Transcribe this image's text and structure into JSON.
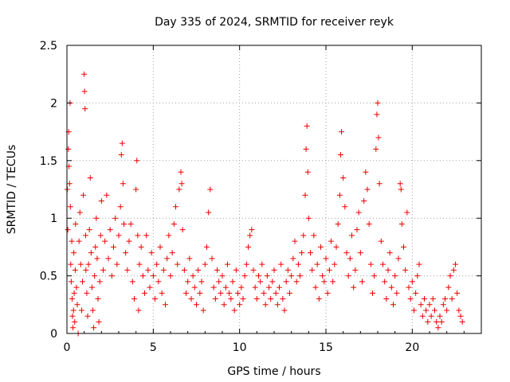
{
  "chart_data": {
    "type": "scatter",
    "title": "Day 335 of 2024, SRMTID for receiver reyk",
    "xlabel": "GPS time / hours",
    "ylabel": "SRMTID / TECUs",
    "xlim": [
      0,
      24
    ],
    "ylim": [
      0,
      2.5
    ],
    "xticks": [
      0,
      5,
      10,
      15,
      20
    ],
    "yticks": [
      0,
      0.5,
      1,
      1.5,
      2,
      2.5
    ],
    "xtick_labels": [
      "0",
      "5",
      "10",
      "15",
      "20"
    ],
    "ytick_labels": [
      "0",
      "0.5",
      "1",
      "1.5",
      "2",
      "2.5"
    ],
    "grid": true,
    "marker": "+",
    "color": "#ee0000",
    "series": [
      {
        "name": "SRMTID",
        "points": [
          [
            0.02,
            1.25
          ],
          [
            0.05,
            0.9
          ],
          [
            0.08,
            1.6
          ],
          [
            0.1,
            1.75
          ],
          [
            0.12,
            1.45
          ],
          [
            0.15,
            1.3
          ],
          [
            0.18,
            2.0
          ],
          [
            0.2,
            1.1
          ],
          [
            0.22,
            0.6
          ],
          [
            0.25,
            0.45
          ],
          [
            0.28,
            0.8
          ],
          [
            0.3,
            0.3
          ],
          [
            0.32,
            0.15
          ],
          [
            0.35,
            0.05
          ],
          [
            0.38,
            0.2
          ],
          [
            0.4,
            0.7
          ],
          [
            0.42,
            0.35
          ],
          [
            0.45,
            0.1
          ],
          [
            0.48,
            0.55
          ],
          [
            0.5,
            0.95
          ],
          [
            0.55,
            0.4
          ],
          [
            0.6,
            0.25
          ],
          [
            0.65,
            0.0
          ],
          [
            0.7,
            0.8
          ],
          [
            0.75,
            1.05
          ],
          [
            0.8,
            0.6
          ],
          [
            0.85,
            0.2
          ],
          [
            0.9,
            0.45
          ],
          [
            0.95,
            1.2
          ],
          [
            1.0,
            2.25
          ],
          [
            1.02,
            2.1
          ],
          [
            1.05,
            1.95
          ],
          [
            1.08,
            0.85
          ],
          [
            1.1,
            0.55
          ],
          [
            1.15,
            0.35
          ],
          [
            1.2,
            0.15
          ],
          [
            1.25,
            0.6
          ],
          [
            1.3,
            0.9
          ],
          [
            1.35,
            1.35
          ],
          [
            1.4,
            0.7
          ],
          [
            1.45,
            0.4
          ],
          [
            1.5,
            0.2
          ],
          [
            1.55,
            0.05
          ],
          [
            1.6,
            0.5
          ],
          [
            1.65,
            0.75
          ],
          [
            1.7,
            1.0
          ],
          [
            1.75,
            0.65
          ],
          [
            1.8,
            0.3
          ],
          [
            1.85,
            0.1
          ],
          [
            1.9,
            0.45
          ],
          [
            1.95,
            0.85
          ],
          [
            2.0,
            1.15
          ],
          [
            2.1,
            0.55
          ],
          [
            2.2,
            0.8
          ],
          [
            2.3,
            1.2
          ],
          [
            2.4,
            0.65
          ],
          [
            2.5,
            0.9
          ],
          [
            2.6,
            0.5
          ],
          [
            2.7,
            0.75
          ],
          [
            2.8,
            1.0
          ],
          [
            2.9,
            0.6
          ],
          [
            3.0,
            0.85
          ],
          [
            3.1,
            1.1
          ],
          [
            3.15,
            1.55
          ],
          [
            3.2,
            1.65
          ],
          [
            3.25,
            1.3
          ],
          [
            3.3,
            0.95
          ],
          [
            3.4,
            0.7
          ],
          [
            3.5,
            0.55
          ],
          [
            3.6,
            0.8
          ],
          [
            3.7,
            0.95
          ],
          [
            3.8,
            0.45
          ],
          [
            3.9,
            0.3
          ],
          [
            4.0,
            1.25
          ],
          [
            4.05,
            1.5
          ],
          [
            4.1,
            0.85
          ],
          [
            4.15,
            0.2
          ],
          [
            4.2,
            0.6
          ],
          [
            4.3,
            0.75
          ],
          [
            4.4,
            0.5
          ],
          [
            4.5,
            0.35
          ],
          [
            4.6,
            0.85
          ],
          [
            4.7,
            0.55
          ],
          [
            4.8,
            0.4
          ],
          [
            4.9,
            0.7
          ],
          [
            5.0,
            0.5
          ],
          [
            5.1,
            0.3
          ],
          [
            5.2,
            0.6
          ],
          [
            5.3,
            0.45
          ],
          [
            5.4,
            0.75
          ],
          [
            5.5,
            0.35
          ],
          [
            5.6,
            0.55
          ],
          [
            5.7,
            0.25
          ],
          [
            5.8,
            0.65
          ],
          [
            5.9,
            0.85
          ],
          [
            6.0,
            0.5
          ],
          [
            6.1,
            0.7
          ],
          [
            6.2,
            0.95
          ],
          [
            6.3,
            1.1
          ],
          [
            6.4,
            0.6
          ],
          [
            6.5,
            1.25
          ],
          [
            6.6,
            1.4
          ],
          [
            6.65,
            1.3
          ],
          [
            6.7,
            0.9
          ],
          [
            6.8,
            0.55
          ],
          [
            6.9,
            0.35
          ],
          [
            7.0,
            0.45
          ],
          [
            7.1,
            0.65
          ],
          [
            7.2,
            0.3
          ],
          [
            7.3,
            0.5
          ],
          [
            7.4,
            0.4
          ],
          [
            7.5,
            0.25
          ],
          [
            7.6,
            0.55
          ],
          [
            7.7,
            0.35
          ],
          [
            7.8,
            0.45
          ],
          [
            7.9,
            0.2
          ],
          [
            8.0,
            0.6
          ],
          [
            8.1,
            0.75
          ],
          [
            8.2,
            1.05
          ],
          [
            8.3,
            1.25
          ],
          [
            8.4,
            0.65
          ],
          [
            8.5,
            0.4
          ],
          [
            8.6,
            0.3
          ],
          [
            8.7,
            0.55
          ],
          [
            8.8,
            0.45
          ],
          [
            8.9,
            0.35
          ],
          [
            9.0,
            0.5
          ],
          [
            9.1,
            0.25
          ],
          [
            9.2,
            0.4
          ],
          [
            9.3,
            0.6
          ],
          [
            9.4,
            0.35
          ],
          [
            9.5,
            0.3
          ],
          [
            9.6,
            0.45
          ],
          [
            9.7,
            0.2
          ],
          [
            9.8,
            0.55
          ],
          [
            9.9,
            0.35
          ],
          [
            10.0,
            0.25
          ],
          [
            10.1,
            0.4
          ],
          [
            10.2,
            0.3
          ],
          [
            10.3,
            0.5
          ],
          [
            10.4,
            0.6
          ],
          [
            10.5,
            0.75
          ],
          [
            10.6,
            0.85
          ],
          [
            10.7,
            0.9
          ],
          [
            10.8,
            0.55
          ],
          [
            10.9,
            0.4
          ],
          [
            11.0,
            0.3
          ],
          [
            11.1,
            0.5
          ],
          [
            11.2,
            0.45
          ],
          [
            11.3,
            0.6
          ],
          [
            11.4,
            0.35
          ],
          [
            11.5,
            0.25
          ],
          [
            11.6,
            0.5
          ],
          [
            11.7,
            0.4
          ],
          [
            11.8,
            0.3
          ],
          [
            11.9,
            0.45
          ],
          [
            12.0,
            0.55
          ],
          [
            12.1,
            0.35
          ],
          [
            12.2,
            0.25
          ],
          [
            12.3,
            0.4
          ],
          [
            12.4,
            0.6
          ],
          [
            12.5,
            0.3
          ],
          [
            12.6,
            0.2
          ],
          [
            12.7,
            0.45
          ],
          [
            12.8,
            0.55
          ],
          [
            12.9,
            0.35
          ],
          [
            13.0,
            0.5
          ],
          [
            13.1,
            0.65
          ],
          [
            13.2,
            0.8
          ],
          [
            13.3,
            0.45
          ],
          [
            13.4,
            0.6
          ],
          [
            13.5,
            0.5
          ],
          [
            13.6,
            0.7
          ],
          [
            13.7,
            0.85
          ],
          [
            13.8,
            1.2
          ],
          [
            13.85,
            1.6
          ],
          [
            13.9,
            1.8
          ],
          [
            13.95,
            1.4
          ],
          [
            14.0,
            1.0
          ],
          [
            14.1,
            0.7
          ],
          [
            14.2,
            0.55
          ],
          [
            14.3,
            0.85
          ],
          [
            14.4,
            0.4
          ],
          [
            14.5,
            0.6
          ],
          [
            14.6,
            0.3
          ],
          [
            14.7,
            0.75
          ],
          [
            14.8,
            0.5
          ],
          [
            14.9,
            0.45
          ],
          [
            15.0,
            0.65
          ],
          [
            15.1,
            0.35
          ],
          [
            15.2,
            0.55
          ],
          [
            15.3,
            0.8
          ],
          [
            15.4,
            0.45
          ],
          [
            15.5,
            0.6
          ],
          [
            15.6,
            0.75
          ],
          [
            15.7,
            0.95
          ],
          [
            15.8,
            1.2
          ],
          [
            15.85,
            1.55
          ],
          [
            15.9,
            1.75
          ],
          [
            16.0,
            1.35
          ],
          [
            16.1,
            1.1
          ],
          [
            16.2,
            0.7
          ],
          [
            16.3,
            0.5
          ],
          [
            16.4,
            0.65
          ],
          [
            16.5,
            0.85
          ],
          [
            16.6,
            0.4
          ],
          [
            16.7,
            0.55
          ],
          [
            16.8,
            0.9
          ],
          [
            16.9,
            1.05
          ],
          [
            17.0,
            0.7
          ],
          [
            17.1,
            0.45
          ],
          [
            17.2,
            1.15
          ],
          [
            17.3,
            1.4
          ],
          [
            17.4,
            1.25
          ],
          [
            17.5,
            0.95
          ],
          [
            17.6,
            0.6
          ],
          [
            17.7,
            0.35
          ],
          [
            17.8,
            0.5
          ],
          [
            17.9,
            1.6
          ],
          [
            17.95,
            1.9
          ],
          [
            18.0,
            2.0
          ],
          [
            18.05,
            1.7
          ],
          [
            18.1,
            1.3
          ],
          [
            18.2,
            0.8
          ],
          [
            18.3,
            0.6
          ],
          [
            18.4,
            0.45
          ],
          [
            18.5,
            0.3
          ],
          [
            18.6,
            0.55
          ],
          [
            18.7,
            0.7
          ],
          [
            18.8,
            0.4
          ],
          [
            18.9,
            0.25
          ],
          [
            19.0,
            0.5
          ],
          [
            19.1,
            0.35
          ],
          [
            19.2,
            0.65
          ],
          [
            19.3,
            1.3
          ],
          [
            19.35,
            1.25
          ],
          [
            19.4,
            0.95
          ],
          [
            19.5,
            0.75
          ],
          [
            19.6,
            0.55
          ],
          [
            19.7,
            1.05
          ],
          [
            19.8,
            0.4
          ],
          [
            19.9,
            0.3
          ],
          [
            20.0,
            0.45
          ],
          [
            20.1,
            0.2
          ],
          [
            20.2,
            0.35
          ],
          [
            20.3,
            0.5
          ],
          [
            20.4,
            0.6
          ],
          [
            20.5,
            0.25
          ],
          [
            20.6,
            0.15
          ],
          [
            20.7,
            0.3
          ],
          [
            20.8,
            0.2
          ],
          [
            20.9,
            0.1
          ],
          [
            21.0,
            0.25
          ],
          [
            21.1,
            0.15
          ],
          [
            21.2,
            0.3
          ],
          [
            21.3,
            0.2
          ],
          [
            21.4,
            0.1
          ],
          [
            21.5,
            0.05
          ],
          [
            21.6,
            0.15
          ],
          [
            21.7,
            0.1
          ],
          [
            21.8,
            0.25
          ],
          [
            21.9,
            0.3
          ],
          [
            22.0,
            0.2
          ],
          [
            22.1,
            0.4
          ],
          [
            22.2,
            0.5
          ],
          [
            22.3,
            0.3
          ],
          [
            22.4,
            0.55
          ],
          [
            22.5,
            0.6
          ],
          [
            22.6,
            0.35
          ],
          [
            22.7,
            0.2
          ],
          [
            22.8,
            0.15
          ],
          [
            22.9,
            0.1
          ]
        ]
      }
    ]
  }
}
